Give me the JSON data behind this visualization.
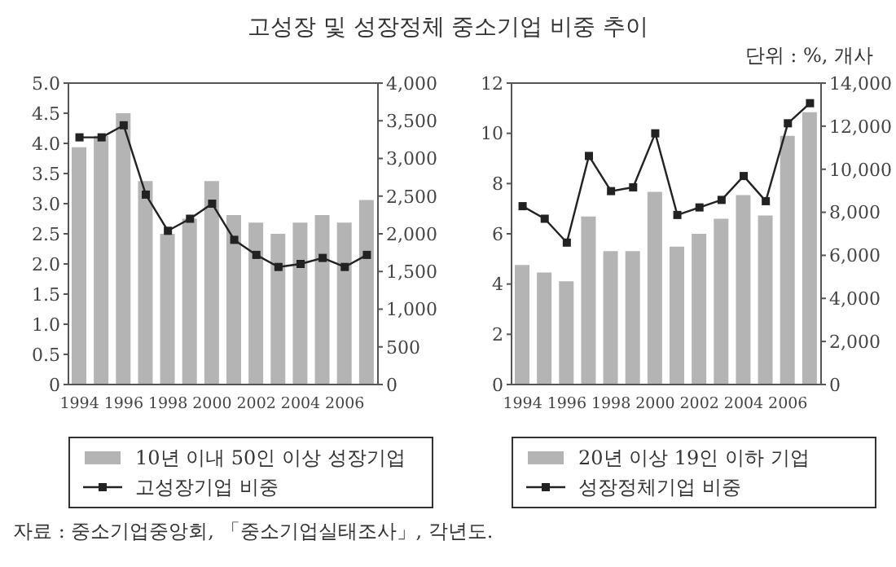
{
  "chart_data": [
    {
      "type": "bar",
      "title": "고성장 및 성장정체 중소기업 비중 추이",
      "categories": [
        "1994",
        null,
        "1996",
        null,
        "1998",
        null,
        "2000",
        null,
        "2002",
        null,
        "2004",
        null,
        "2006",
        null
      ],
      "series": [
        {
          "name": "10년 이내 50인 이상 성장기업",
          "axis": "y2",
          "color": "#b4b4b4",
          "values": [
            3150,
            3300,
            3600,
            2700,
            2000,
            2200,
            2700,
            2250,
            2150,
            2000,
            2150,
            2250,
            2150,
            2450
          ]
        },
        {
          "name": "고성장기업 비중",
          "type": "line",
          "axis": "y",
          "color": "#222222",
          "values": [
            4.1,
            4.1,
            4.3,
            3.15,
            2.55,
            2.75,
            3.0,
            2.4,
            2.15,
            1.95,
            2.0,
            2.1,
            1.95,
            2.15
          ]
        }
      ],
      "ylim": [
        0,
        5
      ],
      "yticks": [
        {
          "value": 0,
          "label": "0"
        },
        {
          "value": 0.5,
          "label": "0.5"
        },
        {
          "value": 1,
          "label": "1.0"
        },
        {
          "value": 1.5,
          "label": "1.5"
        },
        {
          "value": 2,
          "label": "2.0"
        },
        {
          "value": 2.5,
          "label": "2.5"
        },
        {
          "value": 3,
          "label": "3.0"
        },
        {
          "value": 3.5,
          "label": "3.5"
        },
        {
          "value": 4,
          "label": "4.0"
        },
        {
          "value": 4.5,
          "label": "4.5"
        },
        {
          "value": 5,
          "label": "5.0"
        }
      ],
      "y2lim": [
        0,
        4000
      ],
      "y2ticks": [
        {
          "value": 0,
          "label": "0"
        },
        {
          "value": 500,
          "label": "500"
        },
        {
          "value": 1000,
          "label": "1,000"
        },
        {
          "value": 1500,
          "label": "1,500"
        },
        {
          "value": 2000,
          "label": "2,000"
        },
        {
          "value": 2500,
          "label": "2,500"
        },
        {
          "value": 3000,
          "label": "3,000"
        },
        {
          "value": 3500,
          "label": "3,500"
        },
        {
          "value": 4000,
          "label": "4,000"
        }
      ],
      "marker": "square",
      "line_style": "solid",
      "grid": false,
      "legend": "bottom",
      "annotations": [
        "자료 : 중소기업중앙회, 「중소기업실태조사」, 각년도."
      ]
    },
    {
      "type": "bar",
      "categories": [
        "1994",
        null,
        "1996",
        null,
        "1998",
        null,
        "2000",
        null,
        "2002",
        null,
        "2004",
        null,
        "2006",
        null
      ],
      "series": [
        {
          "name": "20년 이상 19인 이하 기업",
          "axis": "y2",
          "color": "#b4b4b4",
          "values": [
            5550,
            5200,
            4800,
            7800,
            6200,
            6200,
            8950,
            6400,
            7000,
            7700,
            8800,
            7850,
            11550,
            12650
          ]
        },
        {
          "name": "성장정체기업 비중",
          "type": "line",
          "axis": "y",
          "color": "#222222",
          "values": [
            7.1,
            6.6,
            5.65,
            9.1,
            7.7,
            7.85,
            10.0,
            6.75,
            7.05,
            7.35,
            8.3,
            7.3,
            10.4,
            11.2
          ]
        }
      ],
      "ylim": [
        0,
        12
      ],
      "yticks": [
        0,
        2,
        4,
        6,
        8,
        10,
        12
      ],
      "y2lim": [
        0,
        14000
      ],
      "y2ticks": [
        {
          "value": 0,
          "label": "0"
        },
        {
          "value": 2000,
          "label": "2,000"
        },
        {
          "value": 4000,
          "label": "4,000"
        },
        {
          "value": 6000,
          "label": "6,000"
        },
        {
          "value": 8000,
          "label": "8,000"
        },
        {
          "value": 10000,
          "label": "10,000"
        },
        {
          "value": 12000,
          "label": "12,000"
        },
        {
          "value": 14000,
          "label": "14,000"
        }
      ],
      "marker": "square",
      "line_style": "solid",
      "grid": false,
      "legend": "bottom",
      "annotations": [
        "단위 : %, 개사"
      ]
    }
  ]
}
